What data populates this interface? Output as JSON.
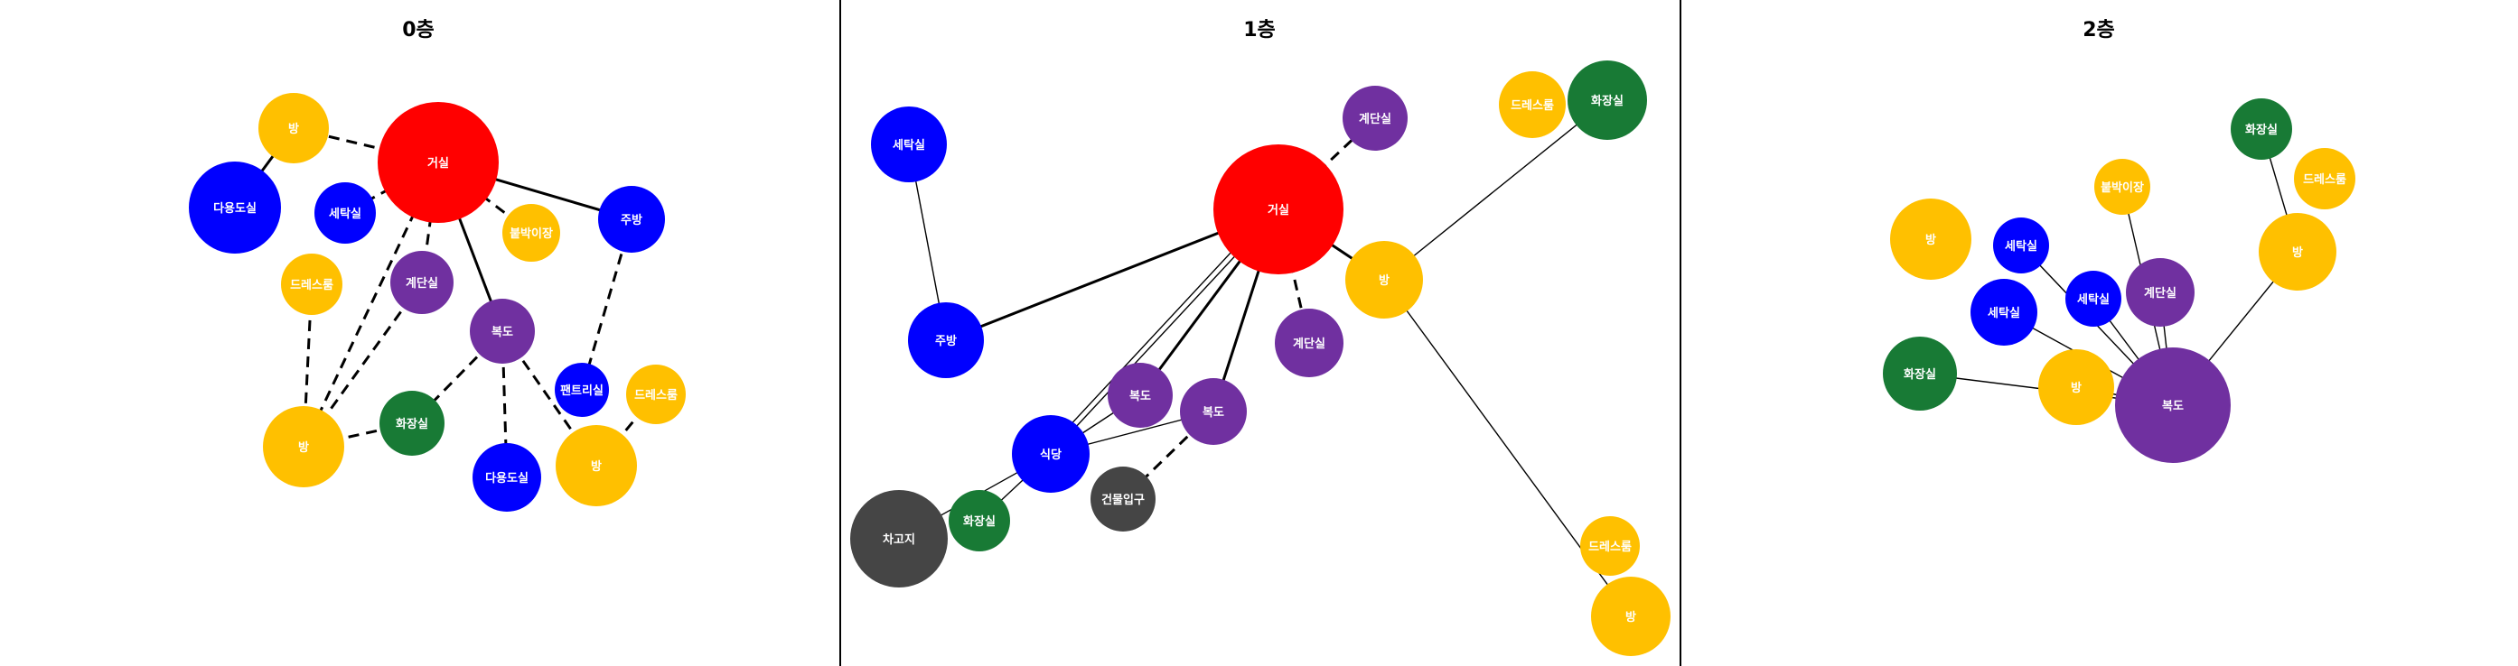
{
  "colors": {
    "living": "#ff0000",
    "room": "#ffc000",
    "laundry_multi": "#0000ff",
    "corridor_stairs": "#7030a0",
    "bathroom": "#187a35",
    "garage_entrance": "#454545",
    "edge": "#000000"
  },
  "panels": [
    {
      "title": "0층",
      "nodes": [
        {
          "id": "n0_living",
          "label": "거실",
          "color": "living"
        },
        {
          "id": "n0_room_top",
          "label": "방",
          "color": "room"
        },
        {
          "id": "n0_multi_left",
          "label": "다용도실",
          "color": "laundry_multi"
        },
        {
          "id": "n0_laundry",
          "label": "세탁실",
          "color": "laundry_multi"
        },
        {
          "id": "n0_storage",
          "label": "붙박이장",
          "color": "room"
        },
        {
          "id": "n0_kitchen",
          "label": "주방",
          "color": "laundry_multi"
        },
        {
          "id": "n0_dress_left",
          "label": "드레스룸",
          "color": "room"
        },
        {
          "id": "n0_stairs",
          "label": "계단실",
          "color": "corridor_stairs"
        },
        {
          "id": "n0_corridor",
          "label": "복도",
          "color": "corridor_stairs"
        },
        {
          "id": "n0_pantry",
          "label": "팬트리실",
          "color": "laundry_multi"
        },
        {
          "id": "n0_dress_right",
          "label": "드레스룸",
          "color": "room"
        },
        {
          "id": "n0_room_left",
          "label": "방",
          "color": "room"
        },
        {
          "id": "n0_bath",
          "label": "화장실",
          "color": "bathroom"
        },
        {
          "id": "n0_multi_bottom",
          "label": "다용도실",
          "color": "laundry_multi"
        },
        {
          "id": "n0_room_right",
          "label": "방",
          "color": "room"
        }
      ]
    },
    {
      "title": "1층",
      "nodes": [
        {
          "id": "n1_laundry",
          "label": "세탁실",
          "color": "laundry_multi"
        },
        {
          "id": "n1_stairs_top",
          "label": "계단실",
          "color": "corridor_stairs"
        },
        {
          "id": "n1_dress_top",
          "label": "드레스룸",
          "color": "room"
        },
        {
          "id": "n1_bath_top",
          "label": "화장실",
          "color": "bathroom"
        },
        {
          "id": "n1_living",
          "label": "거실",
          "color": "living"
        },
        {
          "id": "n1_room_mid",
          "label": "방",
          "color": "room"
        },
        {
          "id": "n1_kitchen",
          "label": "주방",
          "color": "laundry_multi"
        },
        {
          "id": "n1_stairs_mid",
          "label": "계단실",
          "color": "corridor_stairs"
        },
        {
          "id": "n1_corridor_a",
          "label": "복도",
          "color": "corridor_stairs"
        },
        {
          "id": "n1_corridor_b",
          "label": "복도",
          "color": "corridor_stairs"
        },
        {
          "id": "n1_dining",
          "label": "식당",
          "color": "laundry_multi"
        },
        {
          "id": "n1_entrance",
          "label": "건물입구",
          "color": "garage_entrance"
        },
        {
          "id": "n1_bath_bottom",
          "label": "화장실",
          "color": "bathroom"
        },
        {
          "id": "n1_garage",
          "label": "차고지",
          "color": "garage_entrance"
        },
        {
          "id": "n1_dress_bottom",
          "label": "드레스룸",
          "color": "room"
        },
        {
          "id": "n1_room_bottom",
          "label": "방",
          "color": "room"
        }
      ]
    },
    {
      "title": "2층",
      "nodes": [
        {
          "id": "n2_bath_top",
          "label": "화장실",
          "color": "bathroom"
        },
        {
          "id": "n2_dress",
          "label": "드레스룸",
          "color": "room"
        },
        {
          "id": "n2_storage",
          "label": "붙박이장",
          "color": "room"
        },
        {
          "id": "n2_room_right",
          "label": "방",
          "color": "room"
        },
        {
          "id": "n2_room_left",
          "label": "방",
          "color": "room"
        },
        {
          "id": "n2_laundry_a",
          "label": "세탁실",
          "color": "laundry_multi"
        },
        {
          "id": "n2_laundry_b",
          "label": "세탁실",
          "color": "laundry_multi"
        },
        {
          "id": "n2_laundry_c",
          "label": "세탁실",
          "color": "laundry_multi"
        },
        {
          "id": "n2_stairs",
          "label": "계단실",
          "color": "corridor_stairs"
        },
        {
          "id": "n2_bath_left",
          "label": "화장실",
          "color": "bathroom"
        },
        {
          "id": "n2_room_mid",
          "label": "방",
          "color": "room"
        },
        {
          "id": "n2_corridor",
          "label": "복도",
          "color": "corridor_stairs"
        }
      ]
    }
  ],
  "edges": [
    {
      "a": "n0_room_top",
      "b": "n0_multi_left",
      "style": "solid",
      "weight": "thick"
    },
    {
      "a": "n0_room_top",
      "b": "n0_living",
      "style": "dashed",
      "weight": "thick"
    },
    {
      "a": "n0_living",
      "b": "n0_laundry",
      "style": "dashed",
      "weight": "thick"
    },
    {
      "a": "n0_living",
      "b": "n0_storage",
      "style": "dashed",
      "weight": "thick"
    },
    {
      "a": "n0_living",
      "b": "n0_kitchen",
      "style": "solid",
      "weight": "thick"
    },
    {
      "a": "n0_living",
      "b": "n0_corridor",
      "style": "solid",
      "weight": "thick"
    },
    {
      "a": "n0_living",
      "b": "n0_stairs",
      "style": "dashed",
      "weight": "thick"
    },
    {
      "a": "n0_living",
      "b": "n0_room_left",
      "style": "dashed",
      "weight": "thick"
    },
    {
      "a": "n0_stairs",
      "b": "n0_room_left",
      "style": "dashed",
      "weight": "thick"
    },
    {
      "a": "n0_dress_left",
      "b": "n0_room_left",
      "style": "dashed",
      "weight": "thick"
    },
    {
      "a": "n0_kitchen",
      "b": "n0_pantry",
      "style": "dashed",
      "weight": "thick"
    },
    {
      "a": "n0_corridor",
      "b": "n0_bath",
      "style": "dashed",
      "weight": "thick"
    },
    {
      "a": "n0_corridor",
      "b": "n0_multi_bottom",
      "style": "dashed",
      "weight": "thick"
    },
    {
      "a": "n0_corridor",
      "b": "n0_room_right",
      "style": "dashed",
      "weight": "thick"
    },
    {
      "a": "n0_bath",
      "b": "n0_room_left",
      "style": "dashed",
      "weight": "thick"
    },
    {
      "a": "n0_dress_right",
      "b": "n0_room_right",
      "style": "dashed",
      "weight": "thick"
    },
    {
      "a": "n1_laundry",
      "b": "n1_kitchen",
      "style": "solid",
      "weight": "thin"
    },
    {
      "a": "n1_kitchen",
      "b": "n1_living",
      "style": "solid",
      "weight": "thick"
    },
    {
      "a": "n1_living",
      "b": "n1_stairs_top",
      "style": "dashed",
      "weight": "thick"
    },
    {
      "a": "n1_living",
      "b": "n1_room_mid",
      "style": "solid",
      "weight": "thick"
    },
    {
      "a": "n1_living",
      "b": "n1_stairs_mid",
      "style": "dashed",
      "weight": "thick"
    },
    {
      "a": "n1_living",
      "b": "n1_corridor_a",
      "style": "solid",
      "weight": "thick"
    },
    {
      "a": "n1_living",
      "b": "n1_corridor_b",
      "style": "solid",
      "weight": "thick"
    },
    {
      "a": "n1_living",
      "b": "n1_dining",
      "style": "solid",
      "weight": "thin"
    },
    {
      "a": "n1_living",
      "b": "n1_dining",
      "style": "solid",
      "weight": "thin"
    },
    {
      "a": "n1_room_mid",
      "b": "n1_bath_top",
      "style": "solid",
      "weight": "thin"
    },
    {
      "a": "n1_room_mid",
      "b": "n1_room_bottom",
      "style": "solid",
      "weight": "thin"
    },
    {
      "a": "n1_dress_bottom",
      "b": "n1_room_bottom",
      "style": "dashed",
      "weight": "thick"
    },
    {
      "a": "n1_corridor_a",
      "b": "n1_dining",
      "style": "solid",
      "weight": "thin"
    },
    {
      "a": "n1_corridor_b",
      "b": "n1_dining",
      "style": "solid",
      "weight": "thin"
    },
    {
      "a": "n1_corridor_b",
      "b": "n1_entrance",
      "style": "dashed",
      "weight": "thick"
    },
    {
      "a": "n1_dining",
      "b": "n1_bath_bottom",
      "style": "solid",
      "weight": "thin"
    },
    {
      "a": "n1_dining",
      "b": "n1_garage",
      "style": "solid",
      "weight": "thin"
    },
    {
      "a": "n2_bath_top",
      "b": "n2_room_right",
      "style": "solid",
      "weight": "thin"
    },
    {
      "a": "n2_room_right",
      "b": "n2_corridor",
      "style": "solid",
      "weight": "thin"
    },
    {
      "a": "n2_storage",
      "b": "n2_corridor",
      "style": "solid",
      "weight": "thin"
    },
    {
      "a": "n2_laundry_a",
      "b": "n2_corridor",
      "style": "solid",
      "weight": "thin"
    },
    {
      "a": "n2_laundry_b",
      "b": "n2_corridor",
      "style": "solid",
      "weight": "thin"
    },
    {
      "a": "n2_laundry_c",
      "b": "n2_corridor",
      "style": "solid",
      "weight": "thin"
    },
    {
      "a": "n2_stairs",
      "b": "n2_corridor",
      "style": "solid",
      "weight": "thin"
    },
    {
      "a": "n2_bath_left",
      "b": "n2_corridor",
      "style": "solid",
      "weight": "thin"
    },
    {
      "a": "n2_room_mid",
      "b": "n2_corridor",
      "style": "solid",
      "weight": "thin"
    }
  ]
}
